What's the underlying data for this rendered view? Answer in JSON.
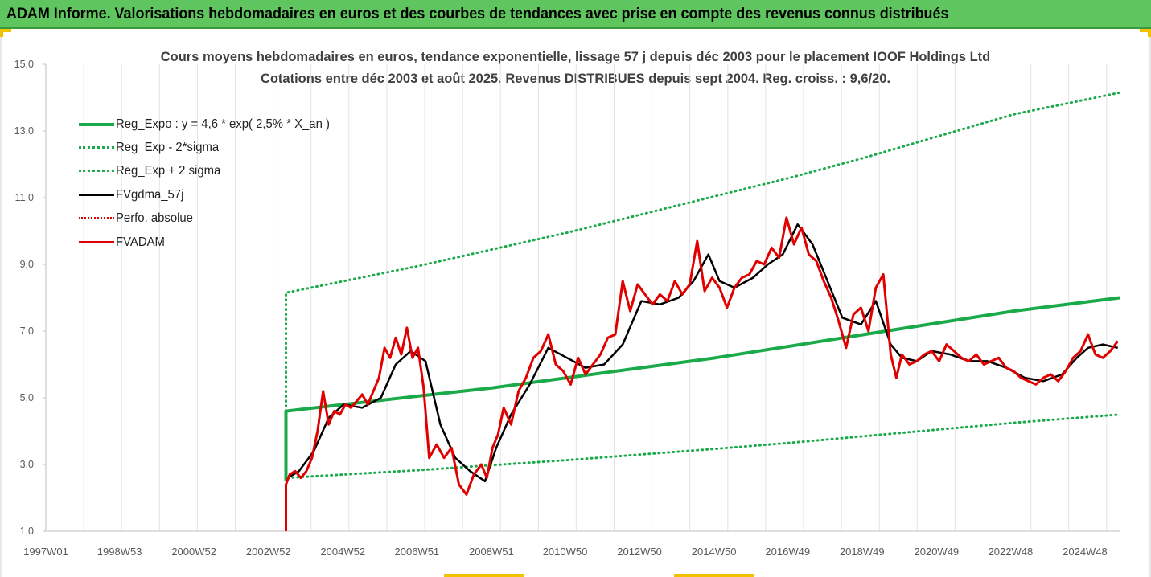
{
  "header": {
    "title": "ADAM Informe. Valorisations hebdomadaires en euros et des courbes de tendances avec prise en compte des revenus connus distribués"
  },
  "colors": {
    "header_bg": "#5fc65f",
    "green": "#1aaa4a",
    "black": "#000000",
    "red": "#e00000",
    "axis": "#d0d0d0",
    "tick_text": "#595959"
  },
  "chart_data": {
    "type": "line",
    "title": "Cours moyens hebdomadaires en euros, tendance exponentielle, lissage 57 j depuis déc 2003 pour le placement IOOF Holdings Ltd",
    "subtitle": "Cotations entre déc 2003 et août 2025. Revenus DISTRIBUES depuis sept 2004. Reg. croiss. : 9,6/20.",
    "ylim": [
      1.0,
      15.0
    ],
    "xlim": [
      1997.0,
      2025.85
    ],
    "y_ticks": [
      "1,0",
      "3,0",
      "5,0",
      "7,0",
      "9,0",
      "11,0",
      "13,0",
      "15,0"
    ],
    "x_ticks": [
      {
        "label": "1997W01",
        "x": 1997.0
      },
      {
        "label": "1998W53",
        "x": 1998.98
      },
      {
        "label": "2000W52",
        "x": 2000.98
      },
      {
        "label": "2002W52",
        "x": 2002.98
      },
      {
        "label": "2004W52",
        "x": 2004.98
      },
      {
        "label": "2006W51",
        "x": 2006.97
      },
      {
        "label": "2008W51",
        "x": 2008.97
      },
      {
        "label": "2010W50",
        "x": 2010.95
      },
      {
        "label": "2012W50",
        "x": 2012.95
      },
      {
        "label": "2014W50",
        "x": 2014.95
      },
      {
        "label": "2016W49",
        "x": 2016.93
      },
      {
        "label": "2018W49",
        "x": 2018.93
      },
      {
        "label": "2020W49",
        "x": 2020.93
      },
      {
        "label": "2022W48",
        "x": 2022.92
      },
      {
        "label": "2024W48",
        "x": 2024.92
      }
    ],
    "legend_position": "top-left",
    "series": [
      {
        "name": "Reg_Expo : y = 4,6 * exp( 2,5% *  X_an )",
        "style": "solid",
        "color": "#1aaa4a",
        "width": 4,
        "x": [
          2003.45,
          2003.45,
          2005.0,
          2007.0,
          2009.0,
          2011.0,
          2013.0,
          2015.0,
          2017.0,
          2019.0,
          2021.0,
          2023.0,
          2025.85
        ],
        "y": [
          2.5,
          4.6,
          4.8,
          5.05,
          5.3,
          5.6,
          5.9,
          6.2,
          6.55,
          6.9,
          7.25,
          7.6,
          8.0
        ]
      },
      {
        "name": "Reg_Exp - 2*sigma",
        "style": "dotted",
        "color": "#1aaa4a",
        "width": 3,
        "x": [
          2003.5,
          2005.0,
          2007.0,
          2009.0,
          2011.0,
          2013.0,
          2015.0,
          2017.0,
          2019.0,
          2021.0,
          2023.0,
          2025.85
        ],
        "y": [
          2.6,
          2.7,
          2.83,
          2.98,
          3.13,
          3.3,
          3.47,
          3.65,
          3.85,
          4.05,
          4.25,
          4.5
        ]
      },
      {
        "name": "Reg_Exp + 2 sigma",
        "style": "dotted",
        "color": "#1aaa4a",
        "width": 3,
        "x": [
          2003.45,
          2003.45,
          2005.0,
          2007.0,
          2009.0,
          2011.0,
          2013.0,
          2015.0,
          2017.0,
          2019.0,
          2021.0,
          2023.0,
          2025.85
        ],
        "y": [
          4.6,
          8.15,
          8.5,
          8.95,
          9.45,
          9.95,
          10.5,
          11.05,
          11.6,
          12.2,
          12.85,
          13.5,
          14.15
        ]
      },
      {
        "name": "FVgdma_57j",
        "style": "solid",
        "color": "#000000",
        "width": 2.5,
        "x": [
          2003.5,
          2003.8,
          2004.2,
          2004.6,
          2005.0,
          2005.5,
          2006.0,
          2006.4,
          2006.8,
          2007.2,
          2007.6,
          2008.0,
          2008.4,
          2008.8,
          2009.1,
          2009.5,
          2010.0,
          2010.5,
          2011.0,
          2011.5,
          2012.0,
          2012.5,
          2013.0,
          2013.5,
          2014.0,
          2014.4,
          2014.8,
          2015.1,
          2015.5,
          2016.0,
          2016.4,
          2016.8,
          2017.2,
          2017.6,
          2018.0,
          2018.4,
          2018.9,
          2019.3,
          2019.7,
          2020.0,
          2020.4,
          2020.8,
          2021.3,
          2021.8,
          2022.3,
          2022.8,
          2023.3,
          2023.8,
          2024.3,
          2024.7,
          2025.0,
          2025.4,
          2025.8
        ],
        "y": [
          2.6,
          2.8,
          3.4,
          4.4,
          4.8,
          4.7,
          5.0,
          6.0,
          6.4,
          6.1,
          4.2,
          3.2,
          2.8,
          2.5,
          3.5,
          4.5,
          5.4,
          6.5,
          6.2,
          5.9,
          6.0,
          6.6,
          7.9,
          7.8,
          8.0,
          8.5,
          9.3,
          8.5,
          8.3,
          8.6,
          9.0,
          9.3,
          10.2,
          9.6,
          8.5,
          7.4,
          7.2,
          7.9,
          6.6,
          6.2,
          6.1,
          6.4,
          6.3,
          6.1,
          6.1,
          5.9,
          5.6,
          5.5,
          5.7,
          6.2,
          6.5,
          6.6,
          6.5
        ]
      },
      {
        "name": "Perfo. absolue",
        "style": "dotted",
        "color": "#e00000",
        "width": 2,
        "x": [],
        "y": []
      },
      {
        "name": "FVADAM",
        "style": "solid",
        "color": "#e00000",
        "width": 3,
        "x": [
          2003.45,
          2003.45,
          2003.55,
          2003.7,
          2003.85,
          2004.0,
          2004.15,
          2004.3,
          2004.45,
          2004.6,
          2004.75,
          2004.9,
          2005.05,
          2005.2,
          2005.35,
          2005.5,
          2005.65,
          2005.8,
          2005.95,
          2006.1,
          2006.25,
          2006.4,
          2006.55,
          2006.7,
          2006.85,
          2007.0,
          2007.15,
          2007.3,
          2007.5,
          2007.7,
          2007.9,
          2008.1,
          2008.3,
          2008.5,
          2008.7,
          2008.85,
          2009.0,
          2009.15,
          2009.3,
          2009.5,
          2009.7,
          2009.9,
          2010.1,
          2010.3,
          2010.5,
          2010.7,
          2010.9,
          2011.1,
          2011.3,
          2011.5,
          2011.7,
          2011.9,
          2012.1,
          2012.3,
          2012.5,
          2012.7,
          2012.9,
          2013.1,
          2013.3,
          2013.5,
          2013.7,
          2013.9,
          2014.1,
          2014.3,
          2014.5,
          2014.7,
          2014.9,
          2015.1,
          2015.3,
          2015.5,
          2015.7,
          2015.9,
          2016.1,
          2016.3,
          2016.5,
          2016.7,
          2016.9,
          2017.1,
          2017.3,
          2017.5,
          2017.7,
          2017.9,
          2018.1,
          2018.3,
          2018.5,
          2018.7,
          2018.9,
          2019.1,
          2019.3,
          2019.5,
          2019.7,
          2019.85,
          2020.0,
          2020.2,
          2020.4,
          2020.6,
          2020.8,
          2021.0,
          2021.2,
          2021.4,
          2021.6,
          2021.8,
          2022.0,
          2022.2,
          2022.4,
          2022.6,
          2022.8,
          2023.0,
          2023.2,
          2023.4,
          2023.6,
          2023.8,
          2024.0,
          2024.2,
          2024.4,
          2024.6,
          2024.8,
          2025.0,
          2025.2,
          2025.4,
          2025.6,
          2025.8
        ],
        "y": [
          1.0,
          2.4,
          2.7,
          2.8,
          2.6,
          2.8,
          3.2,
          4.0,
          5.2,
          4.2,
          4.6,
          4.5,
          4.8,
          4.7,
          4.9,
          5.1,
          4.8,
          5.2,
          5.6,
          6.5,
          6.2,
          6.8,
          6.3,
          7.1,
          6.2,
          6.5,
          5.3,
          3.2,
          3.6,
          3.2,
          3.5,
          2.4,
          2.1,
          2.7,
          3.0,
          2.6,
          3.5,
          3.9,
          4.7,
          4.2,
          5.2,
          5.6,
          6.2,
          6.4,
          6.9,
          6.0,
          5.8,
          5.4,
          6.2,
          5.7,
          6.0,
          6.3,
          6.8,
          6.9,
          8.5,
          7.6,
          8.4,
          8.1,
          7.8,
          8.1,
          7.9,
          8.5,
          8.1,
          8.4,
          9.7,
          8.2,
          8.6,
          8.3,
          7.7,
          8.3,
          8.6,
          8.7,
          9.1,
          9.0,
          9.5,
          9.2,
          10.4,
          9.6,
          10.1,
          9.3,
          9.1,
          8.5,
          8.0,
          7.3,
          6.5,
          7.5,
          7.7,
          7.0,
          8.3,
          8.7,
          6.3,
          5.6,
          6.3,
          6.0,
          6.1,
          6.3,
          6.4,
          6.1,
          6.6,
          6.4,
          6.2,
          6.1,
          6.3,
          6.0,
          6.1,
          6.2,
          5.9,
          5.8,
          5.6,
          5.5,
          5.4,
          5.6,
          5.7,
          5.5,
          5.8,
          6.2,
          6.4,
          6.9,
          6.3,
          6.2,
          6.4,
          6.7
        ]
      }
    ]
  }
}
